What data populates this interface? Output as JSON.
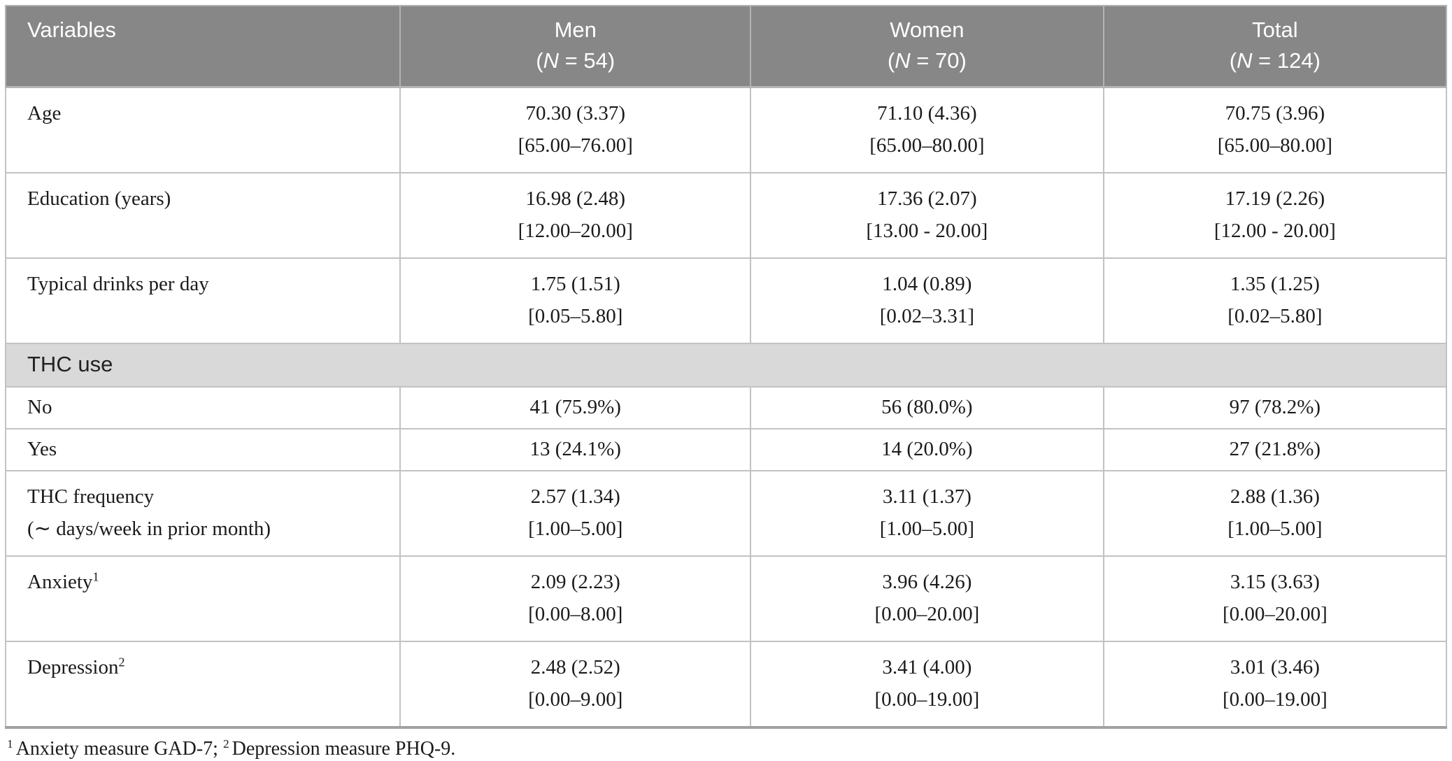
{
  "table": {
    "header": {
      "variables_label": "Variables",
      "columns": [
        {
          "title": "Men",
          "n_open": "(",
          "n_symbol": "N",
          "n_rest": " = 54)"
        },
        {
          "title": "Women",
          "n_open": "(",
          "n_symbol": "N",
          "n_rest": " = 70)"
        },
        {
          "title": "Total",
          "n_open": "(",
          "n_symbol": "N",
          "n_rest": " = 124)"
        }
      ]
    },
    "rows": [
      {
        "label": "Age",
        "cells": [
          {
            "line1": "70.30 (3.37)",
            "line2": "[65.00–76.00]"
          },
          {
            "line1": "71.10 (4.36)",
            "line2": "[65.00–80.00]"
          },
          {
            "line1": "70.75 (3.96)",
            "line2": "[65.00–80.00]"
          }
        ]
      },
      {
        "label": "Education (years)",
        "cells": [
          {
            "line1": "16.98 (2.48)",
            "line2": "[12.00–20.00]"
          },
          {
            "line1": "17.36 (2.07)",
            "line2": "[13.00 - 20.00]"
          },
          {
            "line1": "17.19 (2.26)",
            "line2": "[12.00 - 20.00]"
          }
        ]
      },
      {
        "label": "Typical drinks per day",
        "cells": [
          {
            "line1": "1.75 (1.51)",
            "line2": "[0.05–5.80]"
          },
          {
            "line1": "1.04 (0.89)",
            "line2": "[0.02–3.31]"
          },
          {
            "line1": "1.35 (1.25)",
            "line2": "[0.02–5.80]"
          }
        ]
      },
      {
        "section_label": "THC use"
      },
      {
        "label": "No",
        "cells": [
          {
            "line1": "41 (75.9%)"
          },
          {
            "line1": "56 (80.0%)"
          },
          {
            "line1": "97 (78.2%)"
          }
        ]
      },
      {
        "label": "Yes",
        "cells": [
          {
            "line1": "13 (24.1%)"
          },
          {
            "line1": "14 (20.0%)"
          },
          {
            "line1": "27 (21.8%)"
          }
        ]
      },
      {
        "label": "THC frequency",
        "label_line2": "(∼ days/week in prior month)",
        "cells": [
          {
            "line1": "2.57 (1.34)",
            "line2": "[1.00–5.00]"
          },
          {
            "line1": "3.11 (1.37)",
            "line2": "[1.00–5.00]"
          },
          {
            "line1": "2.88 (1.36)",
            "line2": "[1.00–5.00]"
          }
        ]
      },
      {
        "label": "Anxiety",
        "label_sup": "1",
        "cells": [
          {
            "line1": "2.09 (2.23)",
            "line2": "[0.00–8.00]"
          },
          {
            "line1": "3.96 (4.26)",
            "line2": "[0.00–20.00]"
          },
          {
            "line1": "3.15 (3.63)",
            "line2": "[0.00–20.00]"
          }
        ]
      },
      {
        "label": "Depression",
        "label_sup": "2",
        "cells": [
          {
            "line1": "2.48 (2.52)",
            "line2": "[0.00–9.00]"
          },
          {
            "line1": "3.41 (4.00)",
            "line2": "[0.00–19.00]"
          },
          {
            "line1": "3.01 (3.46)",
            "line2": "[0.00–19.00]"
          }
        ]
      }
    ],
    "footnote": {
      "sup1": "1",
      "text1": "Anxiety measure GAD-7; ",
      "sup2": "2",
      "text2": "Depression measure PHQ-9."
    }
  },
  "colors": {
    "header_bg": "#878787",
    "header_text": "#ffffff",
    "section_bg": "#d9d9d9",
    "border": "#c2c2c2",
    "body_text": "#1b1b1b"
  }
}
